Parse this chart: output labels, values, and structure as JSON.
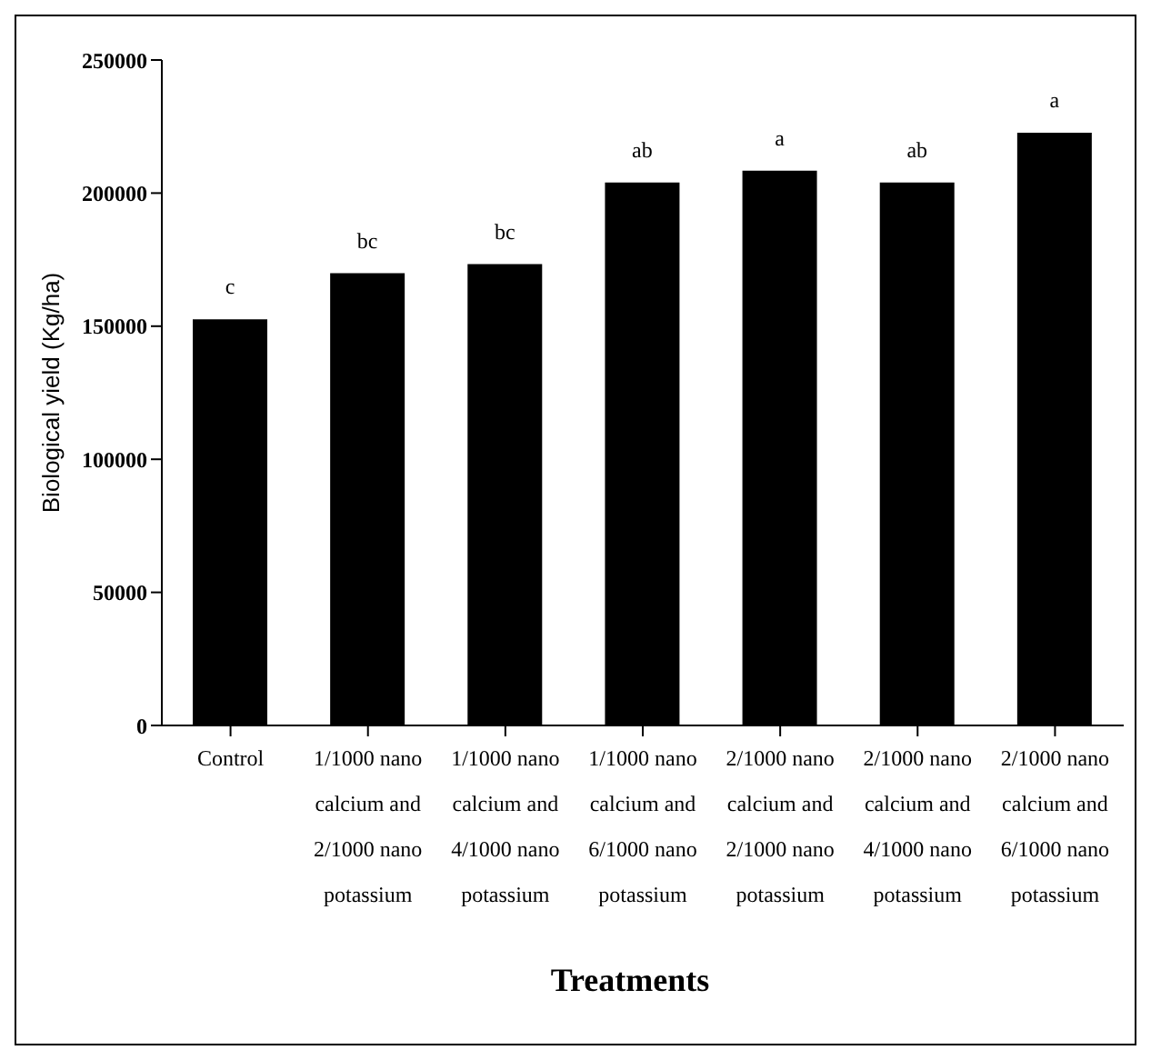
{
  "chart_data": {
    "type": "bar",
    "xlabel": "Treatments",
    "ylabel": "Biological yield (Kg/ha)",
    "categories": [
      "Control",
      "1/1000 nano calcium and 2/1000 nano potassium",
      "1/1000 nano calcium and 4/1000 nano potassium",
      "1/1000 nano calcium and 6/1000 nano potassium",
      "2/1000 nano calcium and 2/1000 nano potassium",
      "2/1000 nano calcium and 4/1000 nano potassium",
      "2/1000 nano calcium and 6/1000 nano potassium"
    ],
    "values": [
      152600,
      169900,
      173300,
      204000,
      208400,
      204000,
      222700
    ],
    "value_labels": [
      "c",
      "bc",
      "bc",
      "ab",
      "a",
      "ab",
      "a"
    ],
    "color": "#000000",
    "ylim": [
      0,
      250000
    ],
    "yticks": [
      0,
      50000,
      100000,
      150000,
      200000,
      250000
    ],
    "grid": false,
    "legend": false
  }
}
